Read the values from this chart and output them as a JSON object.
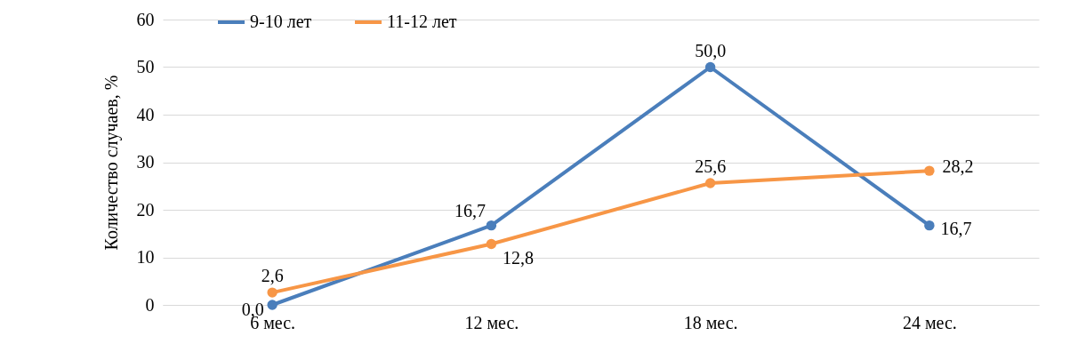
{
  "chart_data": {
    "type": "line",
    "ylabel": "Количество случаев, %",
    "categories": [
      "6 мес.",
      "12 мес.",
      "18 мес.",
      "24 мес."
    ],
    "series": [
      {
        "name": "9-10 лет",
        "color": "#4a7ebb",
        "values": [
          0.0,
          16.7,
          50.0,
          16.7
        ],
        "value_labels": [
          "0,0",
          "16,7",
          "50,0",
          "16,7"
        ]
      },
      {
        "name": "11-12 лет",
        "color": "#f79646",
        "values": [
          2.6,
          12.8,
          25.6,
          28.2
        ],
        "value_labels": [
          "2,6",
          "12,8",
          "25,6",
          "28,2"
        ]
      }
    ],
    "ylim": [
      0,
      60
    ],
    "yticks": [
      0,
      10,
      20,
      30,
      40,
      50,
      60
    ],
    "grid": "y",
    "legend": "top left",
    "marker": "circle",
    "line_style": "solid"
  }
}
